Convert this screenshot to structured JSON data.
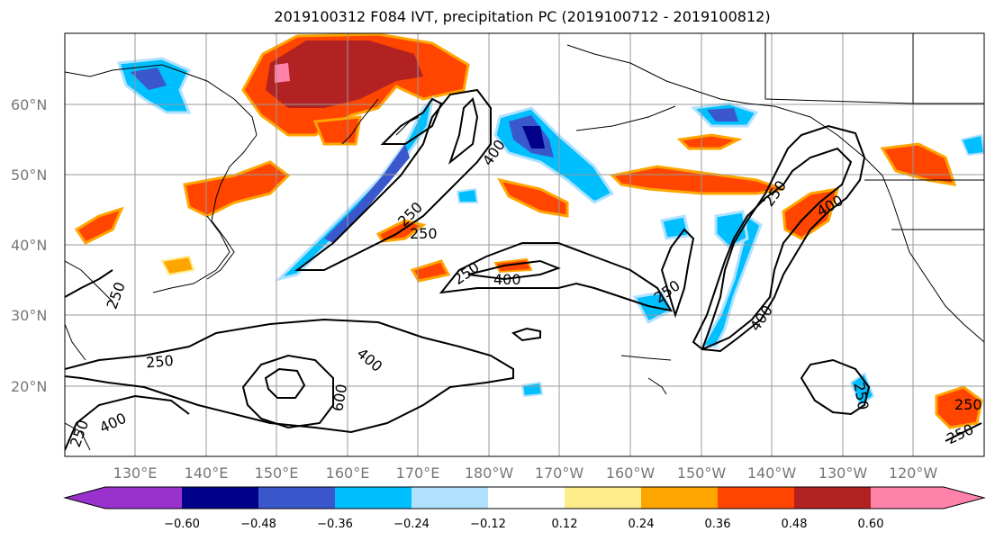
{
  "title": "2019100312 F084 IVT, precipitation PC (2019100712 - 2019100812)",
  "lat_labels": [
    "20°N",
    "30°N",
    "40°N",
    "50°N",
    "60°N"
  ],
  "lon_labels": [
    "130°E",
    "140°E",
    "150°E",
    "160°E",
    "170°E",
    "180°W",
    "170°W",
    "160°W",
    "150°W",
    "140°W",
    "130°W",
    "120°W"
  ],
  "colorbar": {
    "colors": [
      "#9932cc",
      "#00008b",
      "#3a57cc",
      "#00bfff",
      "#b0e2ff",
      "#ffffff",
      "#ffec8b",
      "#ffa500",
      "#ff4500",
      "#b22222",
      "#ff82ab"
    ],
    "ticks": [
      "−0.60",
      "−0.48",
      "−0.36",
      "−0.24",
      "−0.12",
      "0.12",
      "0.24",
      "0.36",
      "0.48",
      "0.60"
    ]
  },
  "contour_labels": [
    "400",
    "250",
    "250",
    "250",
    "400",
    "250",
    "250",
    "400",
    "250",
    "400",
    "250",
    "400",
    "600",
    "250",
    "400",
    "250",
    "250",
    "250"
  ]
}
